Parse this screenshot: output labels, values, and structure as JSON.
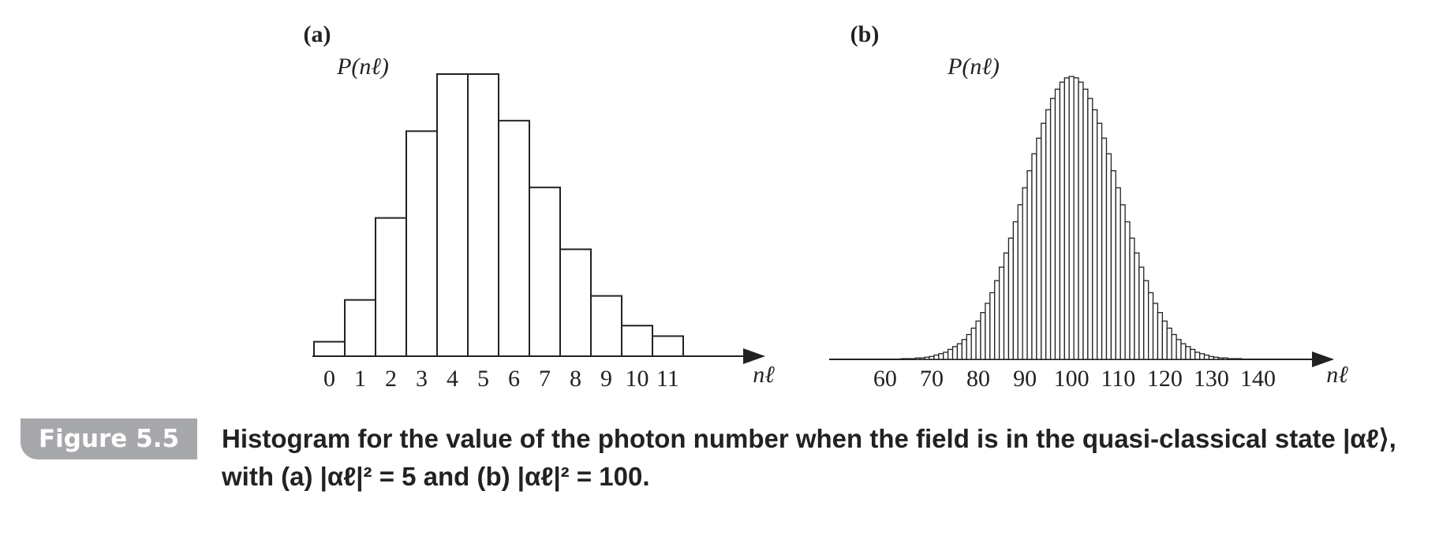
{
  "chart_data": [
    {
      "type": "bar",
      "panel": "(a)",
      "ylabel": "P(nℓ)",
      "xlabel": "nℓ",
      "categories": [
        "0",
        "1",
        "2",
        "3",
        "4",
        "5",
        "6",
        "7",
        "8",
        "9",
        "10",
        "11"
      ],
      "values": [
        0.009,
        0.035,
        0.086,
        0.14,
        0.1755,
        0.1755,
        0.1465,
        0.105,
        0.0665,
        0.0375,
        0.019,
        0.0125
      ],
      "color": "#ffffff"
    },
    {
      "type": "histogram",
      "panel": "(b)",
      "ylabel": "P(nℓ)",
      "xlabel": "nℓ",
      "x": [
        50,
        51,
        52,
        53,
        54,
        55,
        56,
        57,
        58,
        59,
        60,
        61,
        62,
        63,
        64,
        65,
        66,
        67,
        68,
        69,
        70,
        71,
        72,
        73,
        74,
        75,
        76,
        77,
        78,
        79,
        80,
        81,
        82,
        83,
        84,
        85,
        86,
        87,
        88,
        89,
        90,
        91,
        92,
        93,
        94,
        95,
        96,
        97,
        98,
        99,
        100,
        101,
        102,
        103,
        104,
        105,
        106,
        107,
        108,
        109,
        110,
        111,
        112,
        113,
        114,
        115,
        116,
        117,
        118,
        119,
        120,
        121,
        122,
        123,
        124,
        125,
        126,
        127,
        128,
        129,
        130,
        131,
        132,
        133,
        134,
        135,
        136,
        137,
        138,
        139,
        140,
        141,
        142,
        143,
        144,
        145,
        146,
        147,
        148,
        149,
        150
      ],
      "values": [
        0,
        0,
        0,
        0,
        0,
        0,
        0,
        0,
        0,
        0,
        0,
        0,
        0,
        0,
        0.0001,
        0.0001,
        0.0001,
        0.0002,
        0.0002,
        0.0003,
        0.0004,
        0.0006,
        0.0008,
        0.001,
        0.0014,
        0.0018,
        0.0022,
        0.0028,
        0.0035,
        0.0044,
        0.0054,
        0.0066,
        0.0079,
        0.0094,
        0.0111,
        0.013,
        0.015,
        0.0171,
        0.0194,
        0.0218,
        0.0242,
        0.0266,
        0.029,
        0.0312,
        0.0333,
        0.0352,
        0.0368,
        0.0381,
        0.0391,
        0.0397,
        0.0399,
        0.0397,
        0.0391,
        0.0381,
        0.0368,
        0.0352,
        0.0333,
        0.0312,
        0.029,
        0.0266,
        0.0242,
        0.0218,
        0.0194,
        0.0171,
        0.015,
        0.013,
        0.0111,
        0.0094,
        0.0079,
        0.0066,
        0.0054,
        0.0044,
        0.0035,
        0.0028,
        0.0022,
        0.0018,
        0.0014,
        0.001,
        0.0008,
        0.0006,
        0.0004,
        0.0003,
        0.0002,
        0.0002,
        0.0001,
        0.0001,
        0.0001,
        0,
        0,
        0,
        0,
        0,
        0,
        0,
        0,
        0,
        0,
        0,
        0,
        0,
        0
      ],
      "xlim": [
        48,
        156
      ],
      "xticks": [
        60,
        70,
        80,
        90,
        100,
        110,
        120,
        130,
        140
      ],
      "color": "#ffffff"
    }
  ],
  "caption": {
    "label": "Figure 5.5",
    "text": "Histogram for the value of the photon number when the field is in the quasi-classical state |αℓ⟩, with (a) |αℓ|² = 5 and (b) |αℓ|² = 100."
  }
}
